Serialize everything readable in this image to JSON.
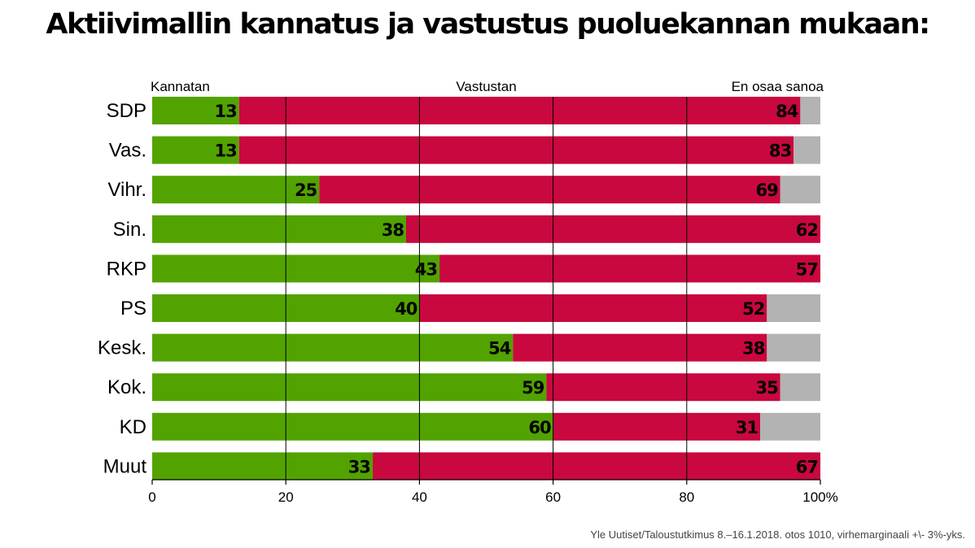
{
  "title": "Aktiivimallin kannatus ja vastustus puoluekannan mukaan:",
  "source": "Yle Uutiset/Taloustutkimus 8.–16.1.2018. otos 1010, virhemarginaali +\\- 3%-yks.",
  "colors": {
    "support": "#52a300",
    "oppose": "#c8083f",
    "dont_know": "#b3b3b3",
    "grid": "#000000"
  },
  "chart_data": {
    "type": "bar",
    "orientation": "horizontal",
    "stacked": true,
    "title": "Aktiivimallin kannatus ja vastustus puoluekannan mukaan:",
    "categories": [
      "SDP",
      "Vas.",
      "Vihr.",
      "Sin.",
      "RKP",
      "PS",
      "Kesk.",
      "Kok.",
      "KD",
      "Muut"
    ],
    "series": [
      {
        "name": "Kannatan",
        "values": [
          13,
          13,
          25,
          38,
          43,
          40,
          54,
          59,
          60,
          33
        ]
      },
      {
        "name": "Vastustan",
        "values": [
          84,
          83,
          69,
          62,
          57,
          52,
          38,
          35,
          31,
          67
        ]
      },
      {
        "name": "En osaa sanoa",
        "values": [
          3,
          4,
          6,
          0,
          0,
          8,
          8,
          6,
          9,
          0
        ]
      }
    ],
    "xlim": [
      0,
      100
    ],
    "xticks": [
      "0",
      "20",
      "40",
      "60",
      "80",
      "100%"
    ],
    "grid": true,
    "legend_placement": "top"
  }
}
